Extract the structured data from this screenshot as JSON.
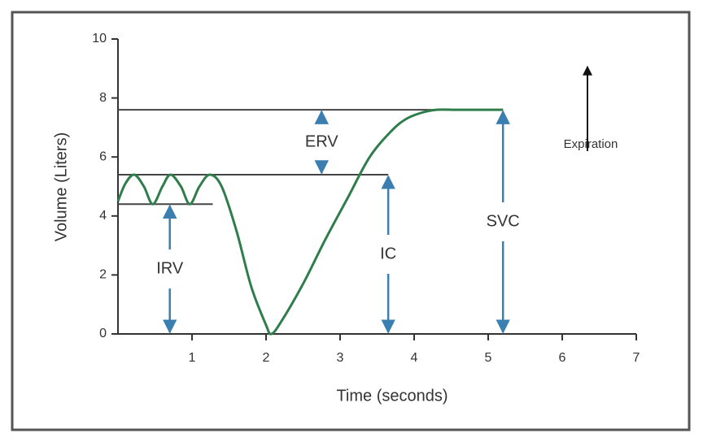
{
  "chart_data": {
    "type": "line",
    "x_label": "Time (seconds)",
    "y_label": "Volume (Liters)",
    "xlim": [
      0,
      7
    ],
    "ylim": [
      0,
      10
    ],
    "xticks": [
      1,
      2,
      3,
      4,
      5,
      6,
      7
    ],
    "yticks": [
      0,
      2,
      4,
      6,
      8,
      10
    ],
    "x": [
      0,
      0.1,
      0.22,
      0.35,
      0.47,
      0.6,
      0.71,
      0.85,
      0.97,
      1.1,
      1.24,
      1.4,
      1.6,
      1.8,
      2.0,
      2.07,
      2.2,
      2.5,
      2.8,
      3.1,
      3.4,
      3.7,
      3.9,
      4.1,
      4.3,
      4.6,
      5.0,
      5.2
    ],
    "series": [
      {
        "color": "#2e7d4a",
        "values": [
          4.5,
          5.1,
          5.4,
          5.0,
          4.4,
          5.0,
          5.4,
          5.0,
          4.4,
          5.0,
          5.4,
          5.0,
          3.5,
          1.6,
          0.3,
          0,
          0.4,
          1.7,
          3.2,
          4.6,
          6.0,
          6.9,
          7.3,
          7.5,
          7.6,
          7.6,
          7.6,
          7.6
        ]
      }
    ],
    "reference_lines": [
      {
        "y": 7.6,
        "x": [
          0,
          5.2
        ]
      },
      {
        "y": 5.4,
        "x": [
          0,
          3.65
        ]
      },
      {
        "y": 4.4,
        "x": [
          0,
          1.28
        ]
      }
    ],
    "annotations": [
      {
        "label": "IRV",
        "x": 0.7,
        "from": 0,
        "to": 4.4
      },
      {
        "label": "ERV",
        "x": 2.75,
        "from": 5.4,
        "to": 7.6
      },
      {
        "label": "IC",
        "x": 3.65,
        "from": 0,
        "to": 5.4
      },
      {
        "label": "SVC",
        "x": 5.2,
        "from": 0,
        "to": 7.6
      }
    ],
    "arrow_color": "#3a7fb0",
    "direction_label": "Expiration"
  }
}
